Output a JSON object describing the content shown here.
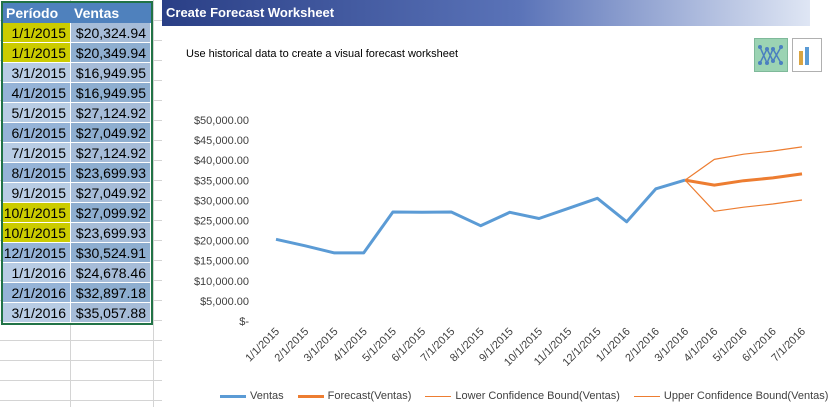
{
  "sheet": {
    "headers": {
      "period": "Período",
      "sales": "Ventas"
    },
    "rows": [
      {
        "period": "1/1/2015",
        "sales": "$20,324.94",
        "highlight": true
      },
      {
        "period": "1/1/2015",
        "sales": "$20,349.94",
        "highlight": true
      },
      {
        "period": "3/1/2015",
        "sales": "$16,949.95",
        "highlight": false
      },
      {
        "period": "4/1/2015",
        "sales": "$16,949.95",
        "highlight": false
      },
      {
        "period": "5/1/2015",
        "sales": "$27,124.92",
        "highlight": false
      },
      {
        "period": "6/1/2015",
        "sales": "$27,049.92",
        "highlight": false
      },
      {
        "period": "7/1/2015",
        "sales": "$27,124.92",
        "highlight": false
      },
      {
        "period": "8/1/2015",
        "sales": "$23,699.93",
        "highlight": false
      },
      {
        "period": "9/1/2015",
        "sales": "$27,049.92",
        "highlight": false
      },
      {
        "period": "10/1/2015",
        "sales": "$27,099.92",
        "highlight": true
      },
      {
        "period": "10/1/2015",
        "sales": "$23,699.93",
        "highlight": true
      },
      {
        "period": "12/1/2015",
        "sales": "$30,524.91",
        "highlight": false
      },
      {
        "period": "1/1/2016",
        "sales": "$24,678.46",
        "highlight": false
      },
      {
        "period": "2/1/2016",
        "sales": "$32,897.18",
        "highlight": false
      },
      {
        "period": "3/1/2016",
        "sales": "$35,057.88",
        "highlight": false
      }
    ],
    "highlight_color": "#cccc00"
  },
  "dialog": {
    "title": "Create Forecast Worksheet",
    "subtitle": "Use historical data to create a visual forecast worksheet",
    "buttons": {
      "line_chart": "line-chart-icon",
      "column_chart": "column-chart-icon"
    }
  },
  "chart_data": {
    "type": "line",
    "categories": [
      "1/1/2015",
      "2/1/2015",
      "3/1/2015",
      "4/1/2015",
      "5/1/2015",
      "6/1/2015",
      "7/1/2015",
      "8/1/2015",
      "9/1/2015",
      "10/1/2015",
      "11/1/2015",
      "12/1/2015",
      "1/1/2016",
      "2/1/2016",
      "3/1/2016",
      "4/1/2016",
      "5/1/2016",
      "6/1/2016",
      "7/1/2016"
    ],
    "ytick_labels": [
      "$-",
      "$5,000.00",
      "$10,000.00",
      "$15,000.00",
      "$20,000.00",
      "$25,000.00",
      "$30,000.00",
      "$35,000.00",
      "$40,000.00",
      "$45,000.00",
      "$50,000.00"
    ],
    "ylim": [
      0,
      50000
    ],
    "grid": false,
    "legend_position": "bottom",
    "series": [
      {
        "name": "Ventas",
        "color": "#5b9bd5",
        "width": "thick",
        "values": [
          20324.94,
          18700,
          16949.95,
          16949.95,
          27124.92,
          27049.92,
          27124.92,
          23699.93,
          27049.92,
          25500,
          28000,
          30524.91,
          24678.46,
          32897.18,
          35057.88,
          null,
          null,
          null,
          null
        ]
      },
      {
        "name": "Forecast(Ventas)",
        "color": "#ed7d31",
        "width": "thick",
        "values": [
          null,
          null,
          null,
          null,
          null,
          null,
          null,
          null,
          null,
          null,
          null,
          null,
          null,
          null,
          35057.88,
          33800,
          34900,
          35600,
          36600
        ]
      },
      {
        "name": "Lower Confidence Bound(Ventas)",
        "color": "#ed7d31",
        "width": "thin",
        "values": [
          null,
          null,
          null,
          null,
          null,
          null,
          null,
          null,
          null,
          null,
          null,
          null,
          null,
          null,
          35057.88,
          27300,
          28300,
          29100,
          30100
        ]
      },
      {
        "name": "Upper Confidence Bound(Ventas)",
        "color": "#ed7d31",
        "width": "thin",
        "values": [
          null,
          null,
          null,
          null,
          null,
          null,
          null,
          null,
          null,
          null,
          null,
          null,
          null,
          null,
          35057.88,
          40200,
          41500,
          42300,
          43300
        ]
      }
    ]
  }
}
